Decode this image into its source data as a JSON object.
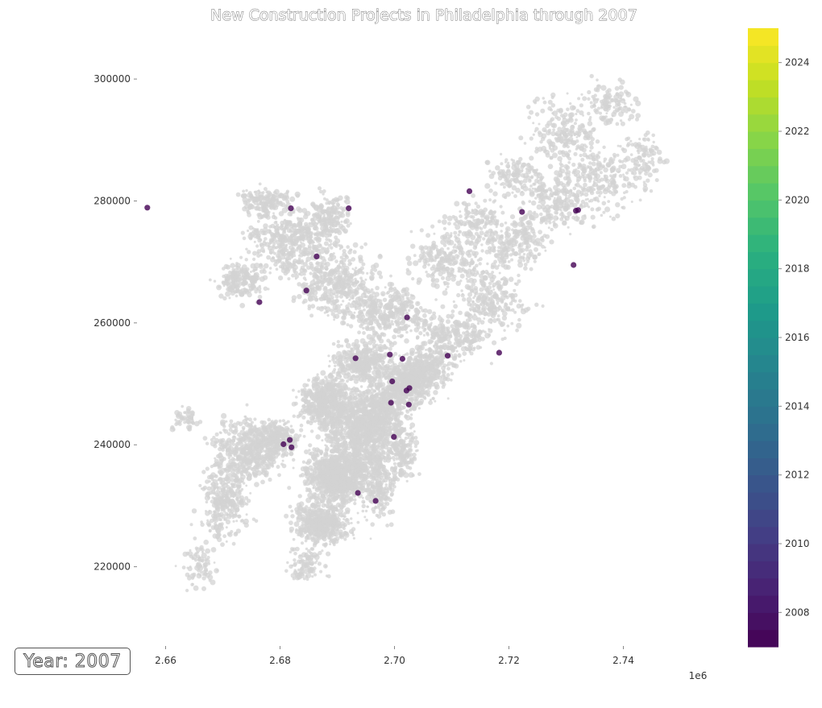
{
  "chart_data": {
    "type": "scatter",
    "title": "New Construction Projects in Philadelphia through 2007",
    "xlabel": "",
    "ylabel": "",
    "x_offset_label": "1e6",
    "xlim": [
      2.655,
      2.755
    ],
    "ylim": [
      207000,
      309000
    ],
    "x_ticks": [
      2.66,
      2.68,
      2.7,
      2.72,
      2.74
    ],
    "x_tick_labels": [
      "2.66",
      "2.68",
      "2.70",
      "2.72",
      "2.74"
    ],
    "y_ticks": [
      220000,
      240000,
      260000,
      280000,
      300000
    ],
    "y_tick_labels": [
      "220000",
      "240000",
      "260000",
      "280000",
      "300000"
    ],
    "grid": false,
    "background_layer": {
      "description": "all parcels, grey",
      "color": "#d3d3d3"
    },
    "series": [
      {
        "color": "#440154",
        "x": [
          2.6568,
          2.6819,
          2.692,
          2.7131,
          2.7223,
          2.7317,
          2.7321,
          2.7313,
          2.6864,
          2.6846,
          2.6764,
          2.7022,
          2.6932,
          2.6992,
          2.7014,
          2.7093,
          2.7183,
          2.6996,
          2.7021,
          2.7026,
          2.6994,
          2.7025,
          2.6999,
          2.6806,
          2.6817,
          2.682,
          2.6936,
          2.6967
        ],
        "y": [
          278900,
          278800,
          278800,
          281600,
          278200,
          278400,
          278500,
          269500,
          270900,
          265300,
          263400,
          260900,
          254200,
          254800,
          254100,
          254600,
          255100,
          250400,
          248900,
          249300,
          246900,
          246600,
          241300,
          240100,
          240800,
          239600,
          232100,
          230800
        ],
        "year": 2007
      }
    ],
    "colorbar": {
      "colormap": "viridis",
      "range": [
        2007,
        2025
      ],
      "ticks": [
        2008,
        2010,
        2012,
        2014,
        2016,
        2018,
        2020,
        2022,
        2024
      ],
      "tick_labels": [
        "2008",
        "2010",
        "2012",
        "2014",
        "2016",
        "2018",
        "2020",
        "2022",
        "2024"
      ]
    },
    "annotation": "Year: 2007"
  }
}
